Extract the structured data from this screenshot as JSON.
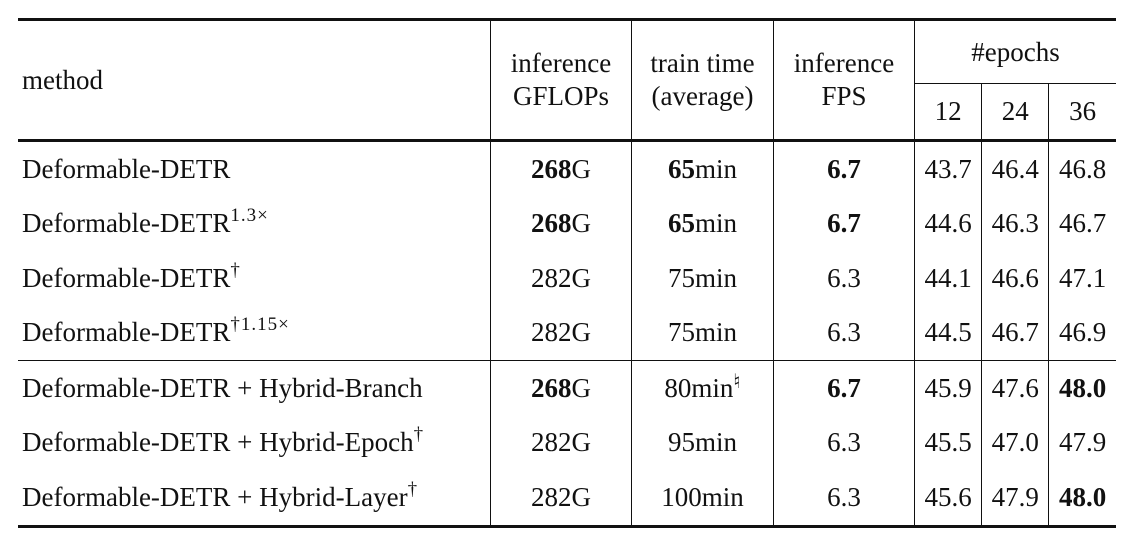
{
  "headers": {
    "method": "method",
    "gflops": [
      "inference",
      "GFLOPs"
    ],
    "train_time": [
      "train time",
      "(average)"
    ],
    "fps": [
      "inference",
      "FPS"
    ],
    "epochs_group": "#epochs",
    "epochs": [
      "12",
      "24",
      "36"
    ]
  },
  "rows": [
    {
      "method": "Deformable-DETR",
      "marker": "",
      "gflops": "268",
      "gflops_unit": "G",
      "gflops_bold": true,
      "train_value": "65",
      "train_unit": "min",
      "train_marker": "",
      "train_bold": true,
      "fps": "6.7",
      "fps_bold": true,
      "e12": "43.7",
      "e24": "46.4",
      "e36": "46.8",
      "e36_bold": false,
      "group": 1
    },
    {
      "method": "Deformable-DETR",
      "marker": "1.3×",
      "gflops": "268",
      "gflops_unit": "G",
      "gflops_bold": true,
      "train_value": "65",
      "train_unit": "min",
      "train_marker": "",
      "train_bold": true,
      "fps": "6.7",
      "fps_bold": true,
      "e12": "44.6",
      "e24": "46.3",
      "e36": "46.7",
      "e36_bold": false,
      "group": 1
    },
    {
      "method": "Deformable-DETR",
      "marker": "†",
      "gflops": "282",
      "gflops_unit": "G",
      "gflops_bold": false,
      "train_value": "75",
      "train_unit": "min",
      "train_marker": "",
      "train_bold": false,
      "fps": "6.3",
      "fps_bold": false,
      "e12": "44.1",
      "e24": "46.6",
      "e36": "47.1",
      "e36_bold": false,
      "group": 1
    },
    {
      "method": "Deformable-DETR",
      "marker": "†1.15×",
      "gflops": "282",
      "gflops_unit": "G",
      "gflops_bold": false,
      "train_value": "75",
      "train_unit": "min",
      "train_marker": "",
      "train_bold": false,
      "fps": "6.3",
      "fps_bold": false,
      "e12": "44.5",
      "e24": "46.7",
      "e36": "46.9",
      "e36_bold": false,
      "group": 1
    },
    {
      "method": "Deformable-DETR + Hybrid-Branch",
      "marker": "",
      "gflops": "268",
      "gflops_unit": "G",
      "gflops_bold": true,
      "train_value": "80",
      "train_unit": "min",
      "train_marker": "♮",
      "train_bold": false,
      "fps": "6.7",
      "fps_bold": true,
      "e12": "45.9",
      "e24": "47.6",
      "e36": "48.0",
      "e36_bold": true,
      "group": 2
    },
    {
      "method": "Deformable-DETR + Hybrid-Epoch",
      "marker": "†",
      "gflops": "282",
      "gflops_unit": "G",
      "gflops_bold": false,
      "train_value": "95",
      "train_unit": "min",
      "train_marker": "",
      "train_bold": false,
      "fps": "6.3",
      "fps_bold": false,
      "e12": "45.5",
      "e24": "47.0",
      "e36": "47.9",
      "e36_bold": false,
      "group": 2
    },
    {
      "method": "Deformable-DETR + Hybrid-Layer",
      "marker": "†",
      "gflops": "282",
      "gflops_unit": "G",
      "gflops_bold": false,
      "train_value": "100",
      "train_unit": "min",
      "train_marker": "",
      "train_bold": false,
      "fps": "6.3",
      "fps_bold": false,
      "e12": "45.6",
      "e24": "47.9",
      "e36": "48.0",
      "e36_bold": true,
      "group": 2
    }
  ]
}
